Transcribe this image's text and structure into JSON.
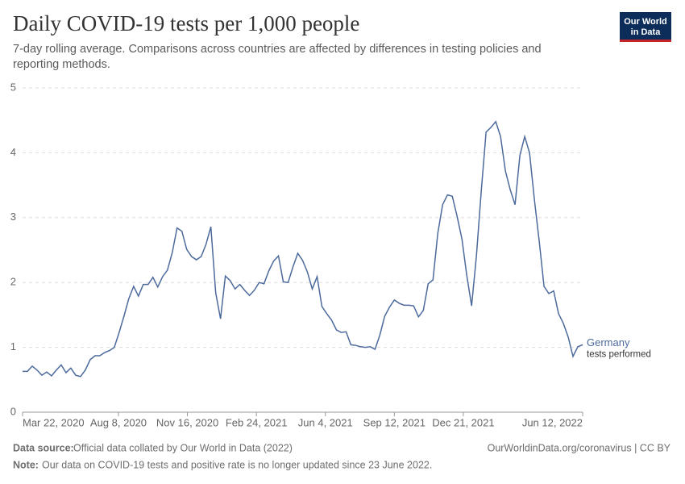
{
  "chart_data": {
    "type": "line",
    "title": "Daily COVID-19 tests per 1,000 people",
    "subtitle": [
      "7-day rolling average. Comparisons across countries are affected by differences in testing policies and",
      "reporting methods."
    ],
    "x": [
      "2020-03-22",
      "2020-03-29",
      "2020-04-05",
      "2020-04-12",
      "2020-04-19",
      "2020-04-26",
      "2020-05-03",
      "2020-05-10",
      "2020-05-17",
      "2020-05-24",
      "2020-05-31",
      "2020-06-07",
      "2020-06-14",
      "2020-06-21",
      "2020-06-28",
      "2020-07-05",
      "2020-07-12",
      "2020-07-19",
      "2020-07-26",
      "2020-08-02",
      "2020-08-09",
      "2020-08-16",
      "2020-08-23",
      "2020-08-30",
      "2020-09-06",
      "2020-09-13",
      "2020-09-20",
      "2020-09-27",
      "2020-10-04",
      "2020-10-11",
      "2020-10-18",
      "2020-10-25",
      "2020-11-01",
      "2020-11-08",
      "2020-11-15",
      "2020-11-22",
      "2020-11-29",
      "2020-12-06",
      "2020-12-13",
      "2020-12-20",
      "2020-12-27",
      "2021-01-03",
      "2021-01-10",
      "2021-01-17",
      "2021-01-24",
      "2021-01-31",
      "2021-02-07",
      "2021-02-14",
      "2021-02-21",
      "2021-02-28",
      "2021-03-07",
      "2021-03-14",
      "2021-03-21",
      "2021-03-28",
      "2021-04-04",
      "2021-04-11",
      "2021-04-18",
      "2021-04-25",
      "2021-05-02",
      "2021-05-09",
      "2021-05-16",
      "2021-05-23",
      "2021-05-30",
      "2021-06-06",
      "2021-06-13",
      "2021-06-20",
      "2021-06-27",
      "2021-07-04",
      "2021-07-11",
      "2021-07-18",
      "2021-07-25",
      "2021-08-01",
      "2021-08-08",
      "2021-08-15",
      "2021-08-22",
      "2021-08-29",
      "2021-09-05",
      "2021-09-12",
      "2021-09-19",
      "2021-09-26",
      "2021-10-03",
      "2021-10-10",
      "2021-10-17",
      "2021-10-24",
      "2021-10-31",
      "2021-11-07",
      "2021-11-14",
      "2021-11-21",
      "2021-11-28",
      "2021-12-05",
      "2021-12-12",
      "2021-12-19",
      "2021-12-26",
      "2022-01-02",
      "2022-01-09",
      "2022-01-16",
      "2022-01-23",
      "2022-01-30",
      "2022-02-06",
      "2022-02-13",
      "2022-02-20",
      "2022-02-27",
      "2022-03-06",
      "2022-03-13",
      "2022-03-20",
      "2022-03-27",
      "2022-04-03",
      "2022-04-10",
      "2022-04-17",
      "2022-04-24",
      "2022-05-01",
      "2022-05-08",
      "2022-05-15",
      "2022-05-22",
      "2022-05-29",
      "2022-06-05",
      "2022-06-12"
    ],
    "series": [
      {
        "name": "Germany",
        "annotation": "tests performed",
        "color": "#4c6a9c",
        "values": [
          0.63,
          0.63,
          0.71,
          0.65,
          0.57,
          0.62,
          0.56,
          0.65,
          0.73,
          0.61,
          0.68,
          0.57,
          0.55,
          0.65,
          0.81,
          0.87,
          0.87,
          0.92,
          0.95,
          1.0,
          1.23,
          1.48,
          1.75,
          1.94,
          1.79,
          1.97,
          1.97,
          2.08,
          1.93,
          2.09,
          2.19,
          2.46,
          2.84,
          2.79,
          2.51,
          2.4,
          2.35,
          2.4,
          2.59,
          2.86,
          1.84,
          1.44,
          2.1,
          2.03,
          1.9,
          1.97,
          1.88,
          1.8,
          1.88,
          2.0,
          1.98,
          2.18,
          2.33,
          2.41,
          2.01,
          2.0,
          2.24,
          2.45,
          2.34,
          2.16,
          1.9,
          2.09,
          1.63,
          1.52,
          1.42,
          1.27,
          1.23,
          1.24,
          1.04,
          1.03,
          1.01,
          1.0,
          1.01,
          0.97,
          1.19,
          1.48,
          1.62,
          1.73,
          1.68,
          1.65,
          1.65,
          1.64,
          1.47,
          1.57,
          1.98,
          2.04,
          2.76,
          3.2,
          3.35,
          3.33,
          3.02,
          2.67,
          2.11,
          1.64,
          2.41,
          3.41,
          4.32,
          4.39,
          4.48,
          4.25,
          3.72,
          3.43,
          3.2,
          3.96,
          4.25,
          4.0,
          3.28,
          2.64,
          1.94,
          1.83,
          1.87,
          1.52,
          1.37,
          1.16,
          0.86,
          1.01,
          1.04
        ]
      }
    ],
    "xlim": [
      "2020-03-22",
      "2022-06-12"
    ],
    "xticks": [
      {
        "value": "2020-03-22",
        "label": "Mar 22, 2020"
      },
      {
        "value": "2020-08-08",
        "label": "Aug 8, 2020"
      },
      {
        "value": "2020-11-16",
        "label": "Nov 16, 2020"
      },
      {
        "value": "2021-02-24",
        "label": "Feb 24, 2021"
      },
      {
        "value": "2021-06-04",
        "label": "Jun 4, 2021"
      },
      {
        "value": "2021-09-12",
        "label": "Sep 12, 2021"
      },
      {
        "value": "2021-12-21",
        "label": "Dec 21, 2021"
      },
      {
        "value": "2022-06-12",
        "label": "Jun 12, 2022"
      }
    ],
    "ylim": [
      0,
      5
    ],
    "yticks": [
      0,
      1,
      2,
      3,
      4,
      5
    ],
    "grid": true
  },
  "logo": [
    "Our World",
    "in Data"
  ],
  "footer": {
    "source_label": "Data source:",
    "source": "Official data collated by Our World in Data (2022)",
    "url": "OurWorldinData.org/coronavirus | CC BY",
    "note_label": "Note:",
    "note": "Our data on COVID-19 tests and positive rate is no longer updated since 23 June 2022."
  }
}
